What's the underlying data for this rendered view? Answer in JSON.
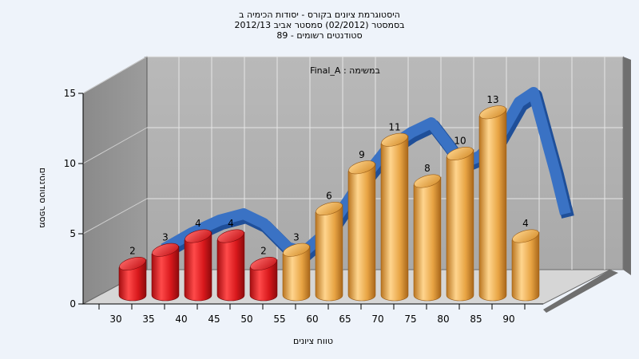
{
  "chart_data": {
    "type": "bar",
    "title_lines": [
      "היסטוגרמת ציונים בקורס - יסודות הכימיה ב",
      "בסמסטר  (02/2012)  סמסטר אביב 2012/13",
      "סטודנטים רשומים - 89"
    ],
    "subtitle": "במשימה : Final_A",
    "xlabel": "טווח ציונים",
    "ylabel": "מספר סטודנטים",
    "ylim": [
      0,
      15
    ],
    "y_ticks": [
      0,
      5,
      10,
      15
    ],
    "categories": [
      "30",
      "35",
      "40",
      "45",
      "50",
      "55",
      "60",
      "65",
      "70",
      "75",
      "80",
      "85",
      "90"
    ],
    "values": [
      2,
      3,
      4,
      4,
      2,
      3,
      6,
      9,
      11,
      8,
      10,
      13,
      4
    ],
    "value_labels": [
      "2",
      "3",
      "4",
      "4",
      "2",
      "3",
      "6",
      "9",
      "11",
      "8",
      "10",
      "13",
      "4"
    ],
    "bar_colors": [
      "#e8232a",
      "#e8232a",
      "#e8232a",
      "#e8232a",
      "#e8232a",
      "#e9a94f",
      "#e9a94f",
      "#e9a94f",
      "#e9a94f",
      "#e9a94f",
      "#e9a94f",
      "#e9a94f",
      "#e9a94f"
    ],
    "curve_color": "#3a72c4",
    "grid": true,
    "legend": "none"
  }
}
